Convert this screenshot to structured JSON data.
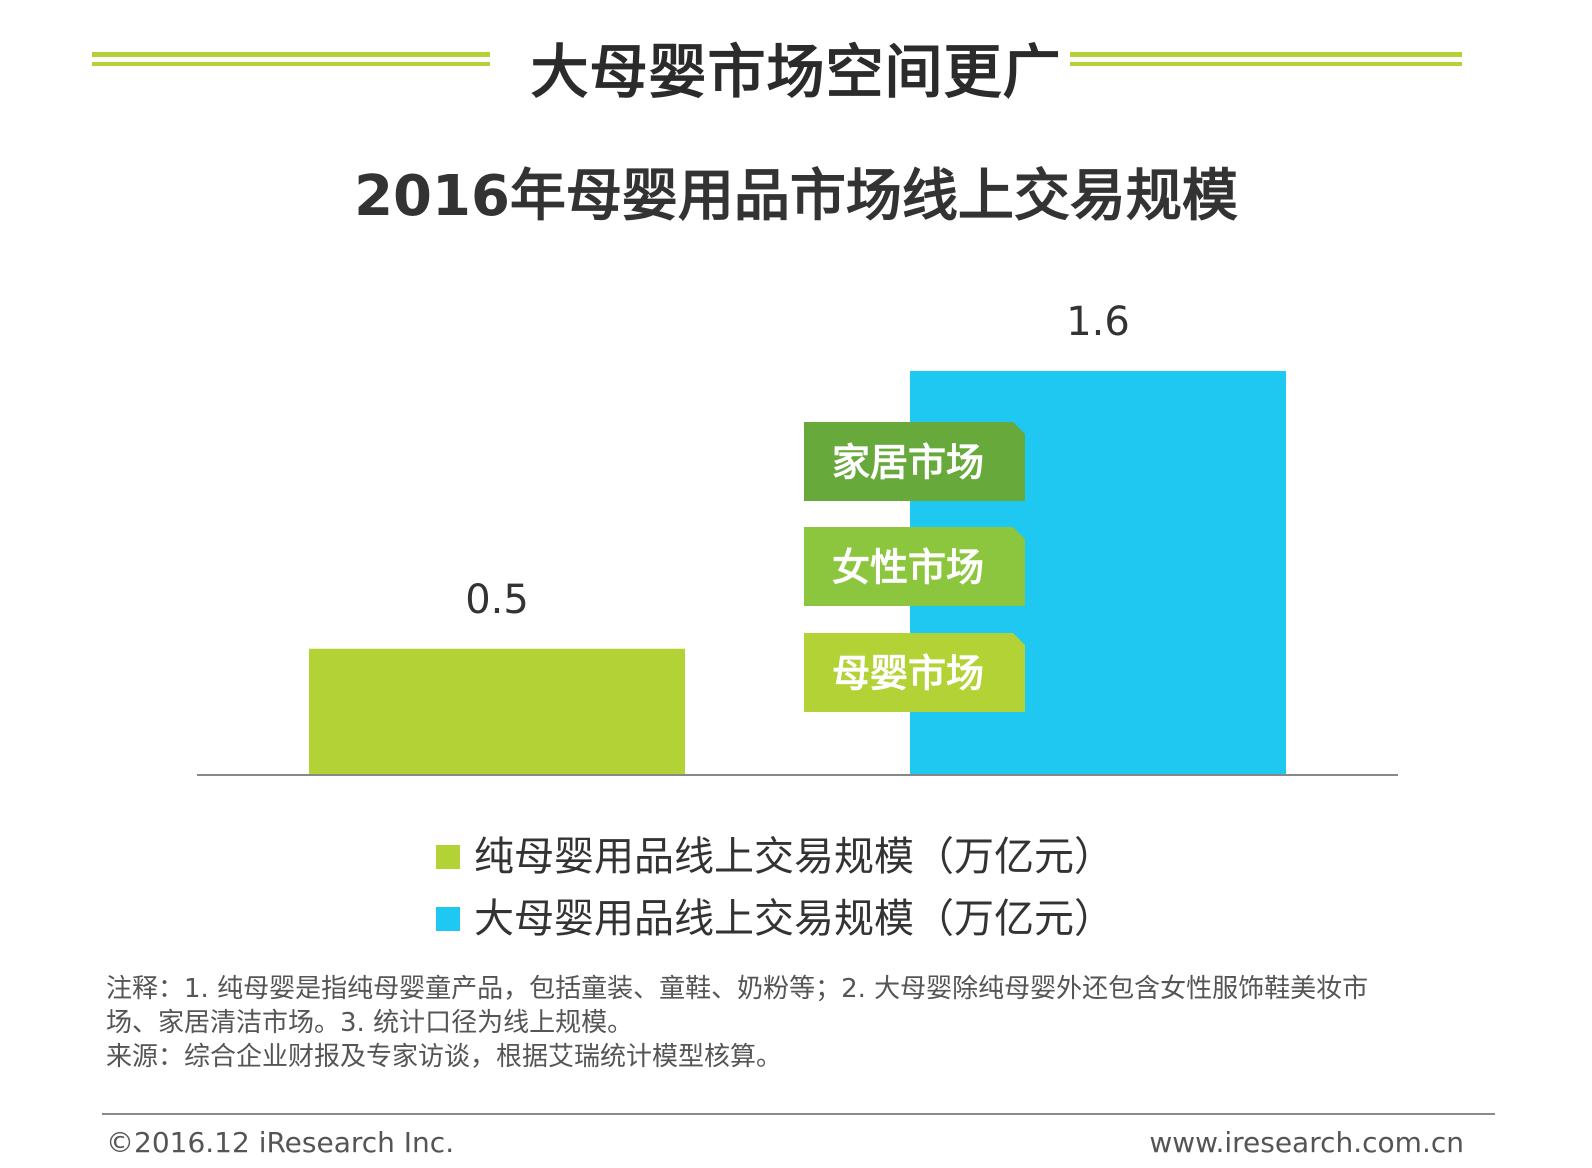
{
  "header": {
    "title": "大母婴市场空间更广",
    "accent_color": "#b3d235"
  },
  "chart_data": {
    "type": "bar",
    "title": "2016年母婴用品市场线上交易规模",
    "categories": [
      "纯母婴用品线上交易规模（万亿元）",
      "大母婴用品线上交易规模（万亿元）"
    ],
    "values": [
      0.5,
      1.6
    ],
    "value_labels": [
      "0.5",
      "1.6"
    ],
    "colors": [
      "#b3d235",
      "#1fc8f0"
    ],
    "ylim": [
      0,
      1.6
    ],
    "grid": false,
    "legend_placement": "bottom",
    "annotations": [
      {
        "text": "家居市场",
        "color": "#67a93b"
      },
      {
        "text": "女性市场",
        "color": "#8cc63e"
      },
      {
        "text": "母婴市场",
        "color": "#b3d235"
      }
    ]
  },
  "legend": {
    "items": [
      {
        "label": "纯母婴用品线上交易规模（万亿元）",
        "color": "#b3d235"
      },
      {
        "label": "大母婴用品线上交易规模（万亿元）",
        "color": "#1fc8f0"
      }
    ]
  },
  "notes": {
    "line1": "注释：1. 纯母婴是指纯母婴童产品，包括童装、童鞋、奶粉等；2. 大母婴除纯母婴外还包含女性服饰鞋美妆市",
    "line2": "场、家居清洁市场。3. 统计口径为线上规模。",
    "source": "来源：综合企业财报及专家访谈，根据艾瑞统计模型核算。"
  },
  "footer": {
    "copyright": "©2016.12 iResearch Inc.",
    "website": "www.iresearch.com.cn"
  }
}
